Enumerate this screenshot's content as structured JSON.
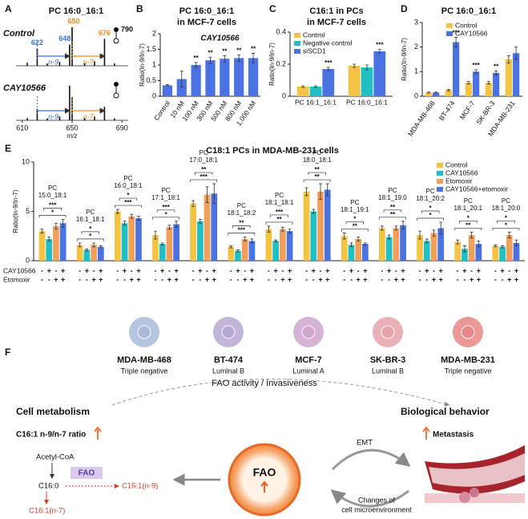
{
  "chart_data": [
    {
      "type": "spectrum",
      "label": "A",
      "title": "PC 16:0_16:1",
      "xlim": [
        605,
        695
      ],
      "xticks": [
        610,
        650,
        690
      ],
      "xlabel": "m/z",
      "series": [
        {
          "name": "Control",
          "x": [
            614,
            622,
            630,
            640,
            648,
            650,
            660,
            668,
            676,
            684
          ],
          "values": [
            0.08,
            0.45,
            0.06,
            0.1,
            0.55,
            1.0,
            0.07,
            0.12,
            0.7,
            0.06
          ]
        },
        {
          "name": "CAY10566",
          "x": [
            614,
            622,
            630,
            640,
            648,
            650,
            660,
            668,
            676,
            684
          ],
          "values": [
            0.06,
            0.3,
            0.05,
            0.1,
            0.9,
            0.6,
            0.06,
            0.1,
            0.35,
            0.05
          ]
        }
      ],
      "peak_labels": [
        622,
        648,
        650,
        676
      ],
      "peak_label_colors": [
        "#3a6fd8",
        "#3a6fd8",
        "#ee8a1e",
        "#ee8a1e"
      ],
      "marker_label": 790,
      "brackets": [
        {
          "text": "n-9",
          "color": "#3a6fd8"
        },
        {
          "text": "n-7",
          "color": "#ee8a1e"
        }
      ]
    },
    {
      "type": "bar",
      "label": "B",
      "title": [
        "PC 16:0_16:1",
        "in MCF-7 cells"
      ],
      "name": "CAY10566",
      "color": "#4a72e0",
      "categories": [
        "Control",
        "10 nM",
        "100 nM",
        "300 nM",
        "500 nM",
        "800 nM",
        "1,000 nM"
      ],
      "values": [
        0.35,
        0.55,
        1.0,
        1.15,
        1.2,
        1.22,
        1.22
      ],
      "errors": [
        0.02,
        0.25,
        0.08,
        0.1,
        0.1,
        0.1,
        0.15
      ],
      "significance": [
        null,
        null,
        "**",
        "**",
        "**",
        "**",
        "**"
      ],
      "ylabel": "Ratio(In-9/In-7)",
      "ylim": [
        0,
        2
      ],
      "yticks": [
        0,
        0.5,
        1,
        1.5,
        2
      ],
      "xtick_rotation": -55
    },
    {
      "type": "bar",
      "label": "C",
      "title": [
        "C16:1 in PCs",
        "in MCF-7 cells"
      ],
      "categories": [
        "PC 16:1_16:1",
        "PC 16:0_16:1"
      ],
      "series": [
        {
          "name": "Control",
          "color": "#f5c342",
          "values": [
            0.06,
            0.19
          ],
          "errors": [
            0.005,
            0.01
          ],
          "significance": [
            null,
            null
          ]
        },
        {
          "name": "Negative control",
          "color": "#1fbfc4",
          "values": [
            0.06,
            0.18
          ],
          "errors": [
            0.005,
            0.015
          ],
          "significance": [
            null,
            null
          ]
        },
        {
          "name": "siSCD1",
          "color": "#4a72e0",
          "values": [
            0.17,
            0.28
          ],
          "errors": [
            0.01,
            0.012
          ],
          "significance": [
            "***",
            "***"
          ]
        }
      ],
      "ylabel": "Ratio(In-9/In-7)",
      "ylim": [
        0,
        0.4
      ],
      "yticks": [
        0,
        0.2,
        0.4
      ],
      "legend": "upper left",
      "xtick_rotation": 0
    },
    {
      "type": "bar",
      "label": "D",
      "title": [
        "PC 16:0_16:1"
      ],
      "categories": [
        "MDA-MB-468",
        "BT-474",
        "MCF-7",
        "SK-BR-3",
        "MDA-MB-231"
      ],
      "series": [
        {
          "name": "Control",
          "color": "#f5c342",
          "values": [
            0.15,
            0.25,
            0.55,
            0.55,
            1.5
          ],
          "errors": [
            0.02,
            0.03,
            0.05,
            0.05,
            0.15
          ],
          "significance": [
            null,
            null,
            null,
            null,
            null
          ]
        },
        {
          "name": "CAY10566",
          "color": "#4a72e0",
          "values": [
            0.15,
            2.2,
            1.0,
            0.95,
            1.75
          ],
          "errors": [
            0.02,
            0.2,
            0.08,
            0.08,
            0.25
          ],
          "significance": [
            null,
            "***",
            "***",
            "**",
            null
          ]
        }
      ],
      "ylabel": "Ratio(In-9/In-7)",
      "ylim": [
        0,
        3
      ],
      "yticks": [
        0,
        1,
        2,
        3
      ],
      "legend": "upper left",
      "xtick_rotation": -55
    },
    {
      "type": "bar",
      "label": "E",
      "title": [
        "C18:1 PCs in MDA-MB-231 cells"
      ],
      "categories": [
        "PC 15:0_18:1",
        "PC 16:1_18:1",
        "PC 16:0_18:1",
        "PC 17:1_18:1",
        "PC 17:0_18:1",
        "PC 18:1_18:2",
        "PC 18:1_18:1",
        "PC 18:0_18:1",
        "PC 18:1_19:1",
        "PC 18:1_19:0",
        "PC 18:1_20:2",
        "PC 18:1_20:1",
        "PC 18:1_20:0"
      ],
      "series": [
        {
          "name": "Control",
          "color": "#f5c342",
          "values": [
            3.0,
            1.6,
            5.0,
            2.6,
            5.8,
            1.4,
            3.2,
            7.0,
            2.5,
            3.3,
            2.6,
            1.9,
            1.5
          ],
          "errors": [
            0.2,
            0.2,
            0.2,
            0.4,
            0.3,
            0.1,
            0.3,
            0.4,
            0.3,
            0.2,
            0.4,
            0.2,
            0.1
          ]
        },
        {
          "name": "CAY10566",
          "color": "#1fbfc4",
          "values": [
            2.2,
            1.1,
            3.8,
            1.7,
            4.0,
            1.0,
            2.0,
            5.0,
            1.6,
            2.4,
            2.0,
            1.2,
            1.4
          ],
          "errors": [
            0.2,
            0.1,
            0.2,
            0.1,
            0.2,
            0.1,
            0.1,
            0.2,
            0.2,
            0.2,
            0.2,
            0.3,
            0.1
          ]
        },
        {
          "name": "Etomoxir",
          "color": "#f0a05a",
          "values": [
            3.5,
            1.6,
            4.5,
            3.4,
            6.7,
            2.2,
            3.2,
            7.0,
            2.2,
            3.3,
            2.8,
            2.6,
            2.6
          ],
          "errors": [
            0.3,
            0.2,
            0.2,
            0.2,
            0.8,
            0.2,
            0.2,
            0.8,
            0.2,
            0.2,
            0.3,
            0.3,
            0.3
          ]
        },
        {
          "name": "CAY10566+etomoxir",
          "color": "#4a72e0",
          "values": [
            3.8,
            1.4,
            4.3,
            3.7,
            6.8,
            2.0,
            3.0,
            7.2,
            1.7,
            3.6,
            3.3,
            1.7,
            1.8
          ],
          "errors": [
            0.4,
            0.1,
            0.2,
            0.3,
            1.0,
            0.2,
            0.2,
            0.6,
            0.1,
            0.4,
            0.6,
            0.3,
            0.3
          ]
        }
      ],
      "group_significance": [
        [
          "*",
          "***"
        ],
        [
          "*",
          "*"
        ],
        [
          "***",
          "*"
        ],
        [
          "*",
          "***"
        ],
        [
          "***",
          "**"
        ],
        [
          "***",
          "**"
        ],
        [
          "**",
          "***"
        ],
        [
          "**",
          "**"
        ],
        [
          "**",
          "*"
        ],
        [
          "**",
          "**"
        ],
        [
          "*",
          "*"
        ],
        [
          "**",
          "*"
        ],
        [
          "*",
          "*"
        ]
      ],
      "treatments": [
        {
          "name": "CAY10566",
          "signs": [
            "-",
            "+",
            "-",
            "+"
          ]
        },
        {
          "name": "Etomoxir",
          "signs": [
            "-",
            "-",
            "+",
            "+"
          ]
        }
      ],
      "ylabel": "Ratio(In-9/In-7)",
      "ylim": [
        0,
        10
      ],
      "yticks": [
        0,
        5,
        10
      ],
      "legend": "upper right",
      "category_position": "above"
    }
  ],
  "cells": [
    {
      "name": "MDA-MB-468",
      "subtype": "Triple negative",
      "color": "#a9bbd9"
    },
    {
      "name": "BT-474",
      "subtype": "Luminal B",
      "color": "#b7a8d2"
    },
    {
      "name": "MCF-7",
      "subtype": "Luminal A",
      "color": "#cfa6cc"
    },
    {
      "name": "SK-BR-3",
      "subtype": "Luminal B",
      "color": "#e6a2aa"
    },
    {
      "name": "MDA-MB-231",
      "subtype": "Triple negative",
      "color": "#e88684"
    }
  ],
  "diagram": {
    "label": "F",
    "arc_label": "FAO activity / Invasiveness",
    "left_title": "Cell metabolism",
    "left_subtitle": "C16:1 n-9/n-7 ratio",
    "right_title": "Biological behavior",
    "right_subtitle": "Metastasis",
    "pathway": {
      "start": "Acetyl-CoA",
      "enzyme": "FAO",
      "middle": "C16:0",
      "product": "C16:1(n-9)",
      "side_product": "C16:1(n-7)"
    },
    "center": "FAO",
    "cycle_top": "EMT",
    "cycle_bottom": [
      "Changes of",
      "cell microenvironment"
    ]
  }
}
